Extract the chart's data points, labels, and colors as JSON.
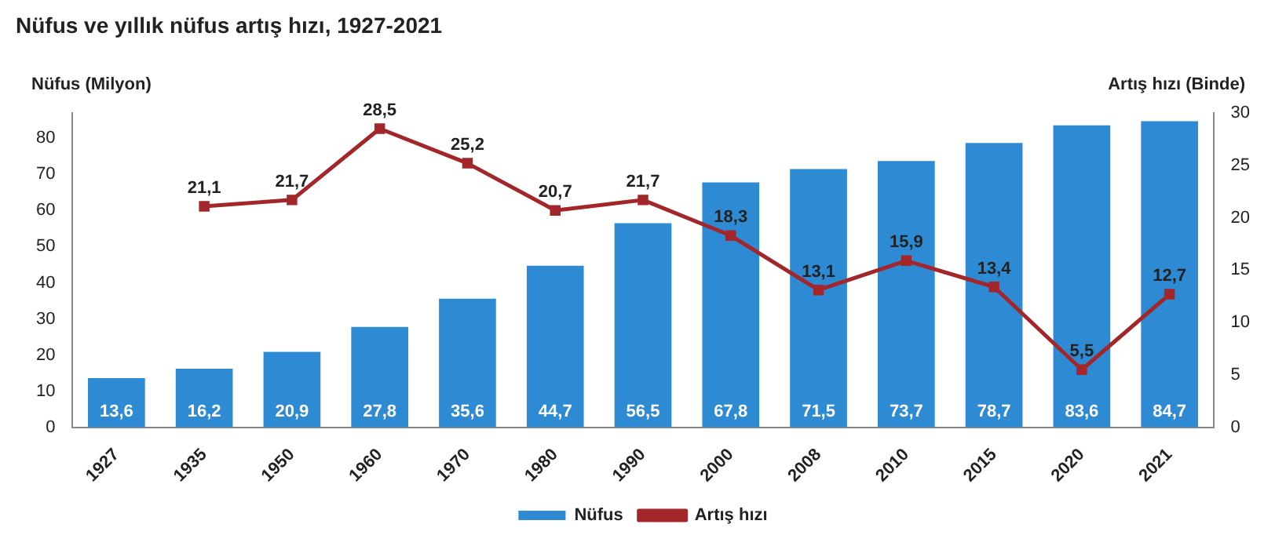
{
  "chart_data": {
    "type": "bar",
    "title": "Nüfus ve yıllık nüfus artış hızı, 1927-2021",
    "ylabel": "Nüfus (Milyon)",
    "y2label": "Artış hızı (Binde)",
    "categories": [
      "1927",
      "1935",
      "1950",
      "1960",
      "1970",
      "1980",
      "1990",
      "2000",
      "2008",
      "2010",
      "2015",
      "2020",
      "2021"
    ],
    "series": [
      {
        "name": "Nüfus",
        "color": "#2e8bd3",
        "values": [
          13.6,
          16.2,
          20.9,
          27.8,
          35.6,
          44.7,
          56.5,
          67.8,
          71.5,
          73.7,
          78.7,
          83.6,
          84.7
        ],
        "value_labels": [
          "13,6",
          "16,2",
          "20,9",
          "27,8",
          "35,6",
          "44,7",
          "56,5",
          "67,8",
          "71,5",
          "73,7",
          "78,7",
          "83,6",
          "84,7"
        ]
      },
      {
        "name": "Artış hızı",
        "type": "line",
        "axis": "y2",
        "color": "#a3262a",
        "marker": "square",
        "values": [
          null,
          21.1,
          21.7,
          28.5,
          25.2,
          20.7,
          21.7,
          18.3,
          13.1,
          15.9,
          13.4,
          5.5,
          12.7
        ],
        "value_labels": [
          null,
          "21,1",
          "21,7",
          "28,5",
          "25,2",
          "20,7",
          "21,7",
          "18,3",
          "13,1",
          "15,9",
          "13,4",
          "5,5",
          "12,7"
        ]
      }
    ],
    "ylim": [
      0,
      87
    ],
    "yticks": [
      0,
      10,
      20,
      30,
      40,
      50,
      60,
      70,
      80
    ],
    "y2lim": [
      0,
      30
    ],
    "y2ticks": [
      0,
      5,
      10,
      15,
      20,
      25,
      30
    ],
    "legend": "bottom",
    "grid": false
  }
}
